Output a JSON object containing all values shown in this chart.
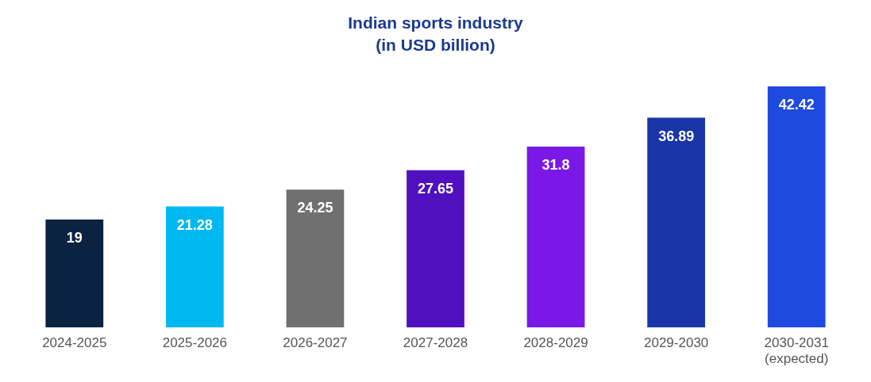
{
  "chart_data": {
    "type": "bar",
    "title": "Indian sports industry",
    "subtitle": "(in USD billion)",
    "categories": [
      "2024-2025",
      "2025-2026",
      "2026-2027",
      "2027-2028",
      "2028-2029",
      "2029-2030",
      "2030-2031 (expected)"
    ],
    "values": [
      19,
      21.28,
      24.25,
      27.65,
      31.8,
      36.89,
      42.42
    ],
    "colors": [
      "#0b2340",
      "#00b8f0",
      "#707070",
      "#5010c0",
      "#7a18e8",
      "#1a35a8",
      "#1e4ae0"
    ],
    "data_labels": true,
    "grid": false,
    "legend": false
  }
}
